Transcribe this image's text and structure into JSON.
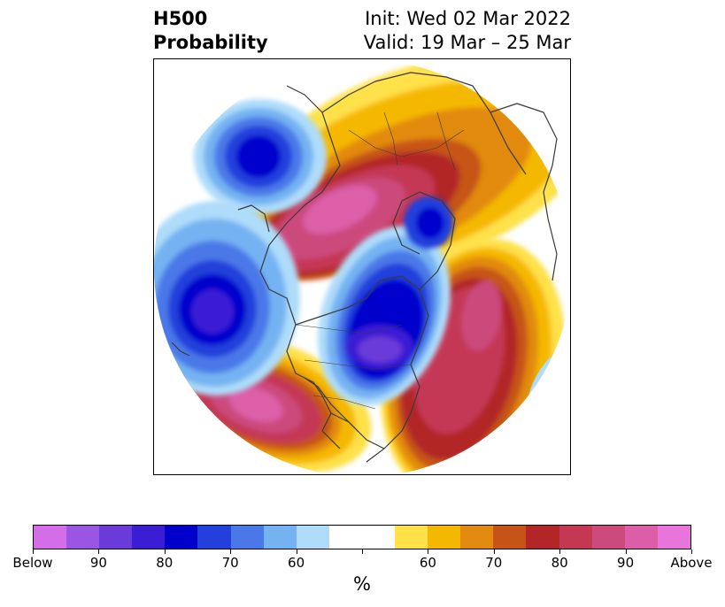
{
  "title": {
    "left_line1": "H500",
    "left_line2": "Probability",
    "right_line1": "Init: Wed 02 Mar 2022",
    "right_line2": "Valid: 19 Mar – 25 Mar"
  },
  "colorbar": {
    "unit": "%",
    "colors": [
      "#d36ee8",
      "#9a55e2",
      "#6a3bd8",
      "#3b1ed4",
      "#0000cc",
      "#2340dc",
      "#4b78e8",
      "#74b2f2",
      "#aedcfa",
      "#ffffff",
      "#ffffff",
      "#ffe14a",
      "#f5b800",
      "#e28a10",
      "#c65418",
      "#b22628",
      "#c43854",
      "#cc4a7c",
      "#dc5ea8",
      "#e875dc"
    ],
    "tick_labels": [
      "Below",
      "90",
      "80",
      "70",
      "60",
      "",
      "60",
      "70",
      "80",
      "90",
      "Above"
    ]
  },
  "map": {
    "projection": "north-polar-stereographic",
    "colors": {
      "outline": "#3a3a3a",
      "ocean": "#ffffff"
    }
  }
}
